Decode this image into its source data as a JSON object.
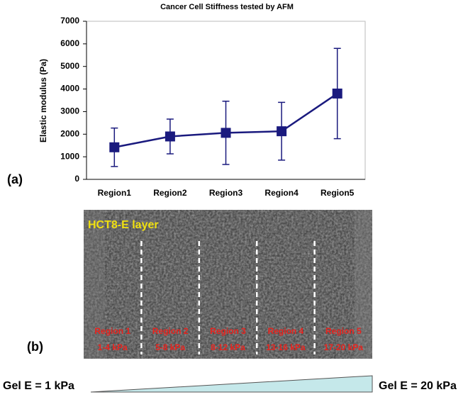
{
  "chart_data": {
    "type": "line",
    "title": "Cancer Cell Stiffness tested by AFM",
    "y_label": "Elastic modulus (Pa)",
    "categories": [
      "Region1",
      "Region2",
      "Region3",
      "Region4",
      "Region5"
    ],
    "values": [
      1420,
      1900,
      2060,
      2130,
      3800
    ],
    "errors": [
      850,
      770,
      1400,
      1280,
      2000
    ],
    "color": "#1a1a7e",
    "ylim": [
      0,
      7000
    ],
    "yticks": [
      0,
      1000,
      2000,
      3000,
      4000,
      5000,
      6000,
      7000
    ]
  },
  "panel_a_label": "(a)",
  "panel_b": {
    "label": "(b)",
    "title": "HCT8-E layer",
    "regions": [
      {
        "name": "Region 1",
        "range": "1-4 kPa"
      },
      {
        "name": "Region 2",
        "range": "5-8 kPa"
      },
      {
        "name": "Region 3",
        "range": "8-12 kPa"
      },
      {
        "name": "Region 4",
        "range": "13-16 kPa"
      },
      {
        "name": "Region 5",
        "range": "17-20 kPa"
      }
    ]
  },
  "gradient": {
    "left": "Gel E = 1 kPa",
    "right": "Gel E = 20 kPa"
  }
}
